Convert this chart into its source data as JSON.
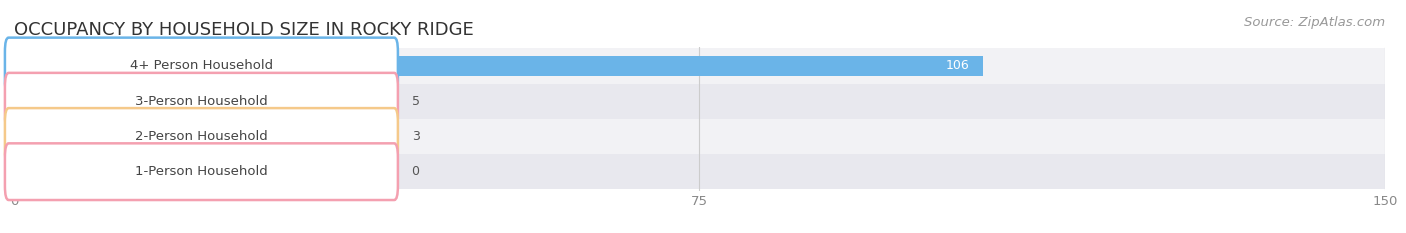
{
  "title": "OCCUPANCY BY HOUSEHOLD SIZE IN ROCKY RIDGE",
  "source": "Source: ZipAtlas.com",
  "categories": [
    "1-Person Household",
    "2-Person Household",
    "3-Person Household",
    "4+ Person Household"
  ],
  "values": [
    0,
    3,
    5,
    106
  ],
  "bar_colors": [
    "#f4a0b0",
    "#f5c98a",
    "#f4a0b0",
    "#6ab4e8"
  ],
  "bar_bg_color": "#ededf0",
  "xlim": [
    0,
    150
  ],
  "xticks": [
    0,
    75,
    150
  ],
  "background_color": "#ffffff",
  "title_fontsize": 13,
  "label_fontsize": 9.5,
  "value_fontsize": 9,
  "source_fontsize": 9.5,
  "bar_height": 0.58,
  "row_bg_colors": [
    "#f2f2f5",
    "#e8e8ee"
  ]
}
